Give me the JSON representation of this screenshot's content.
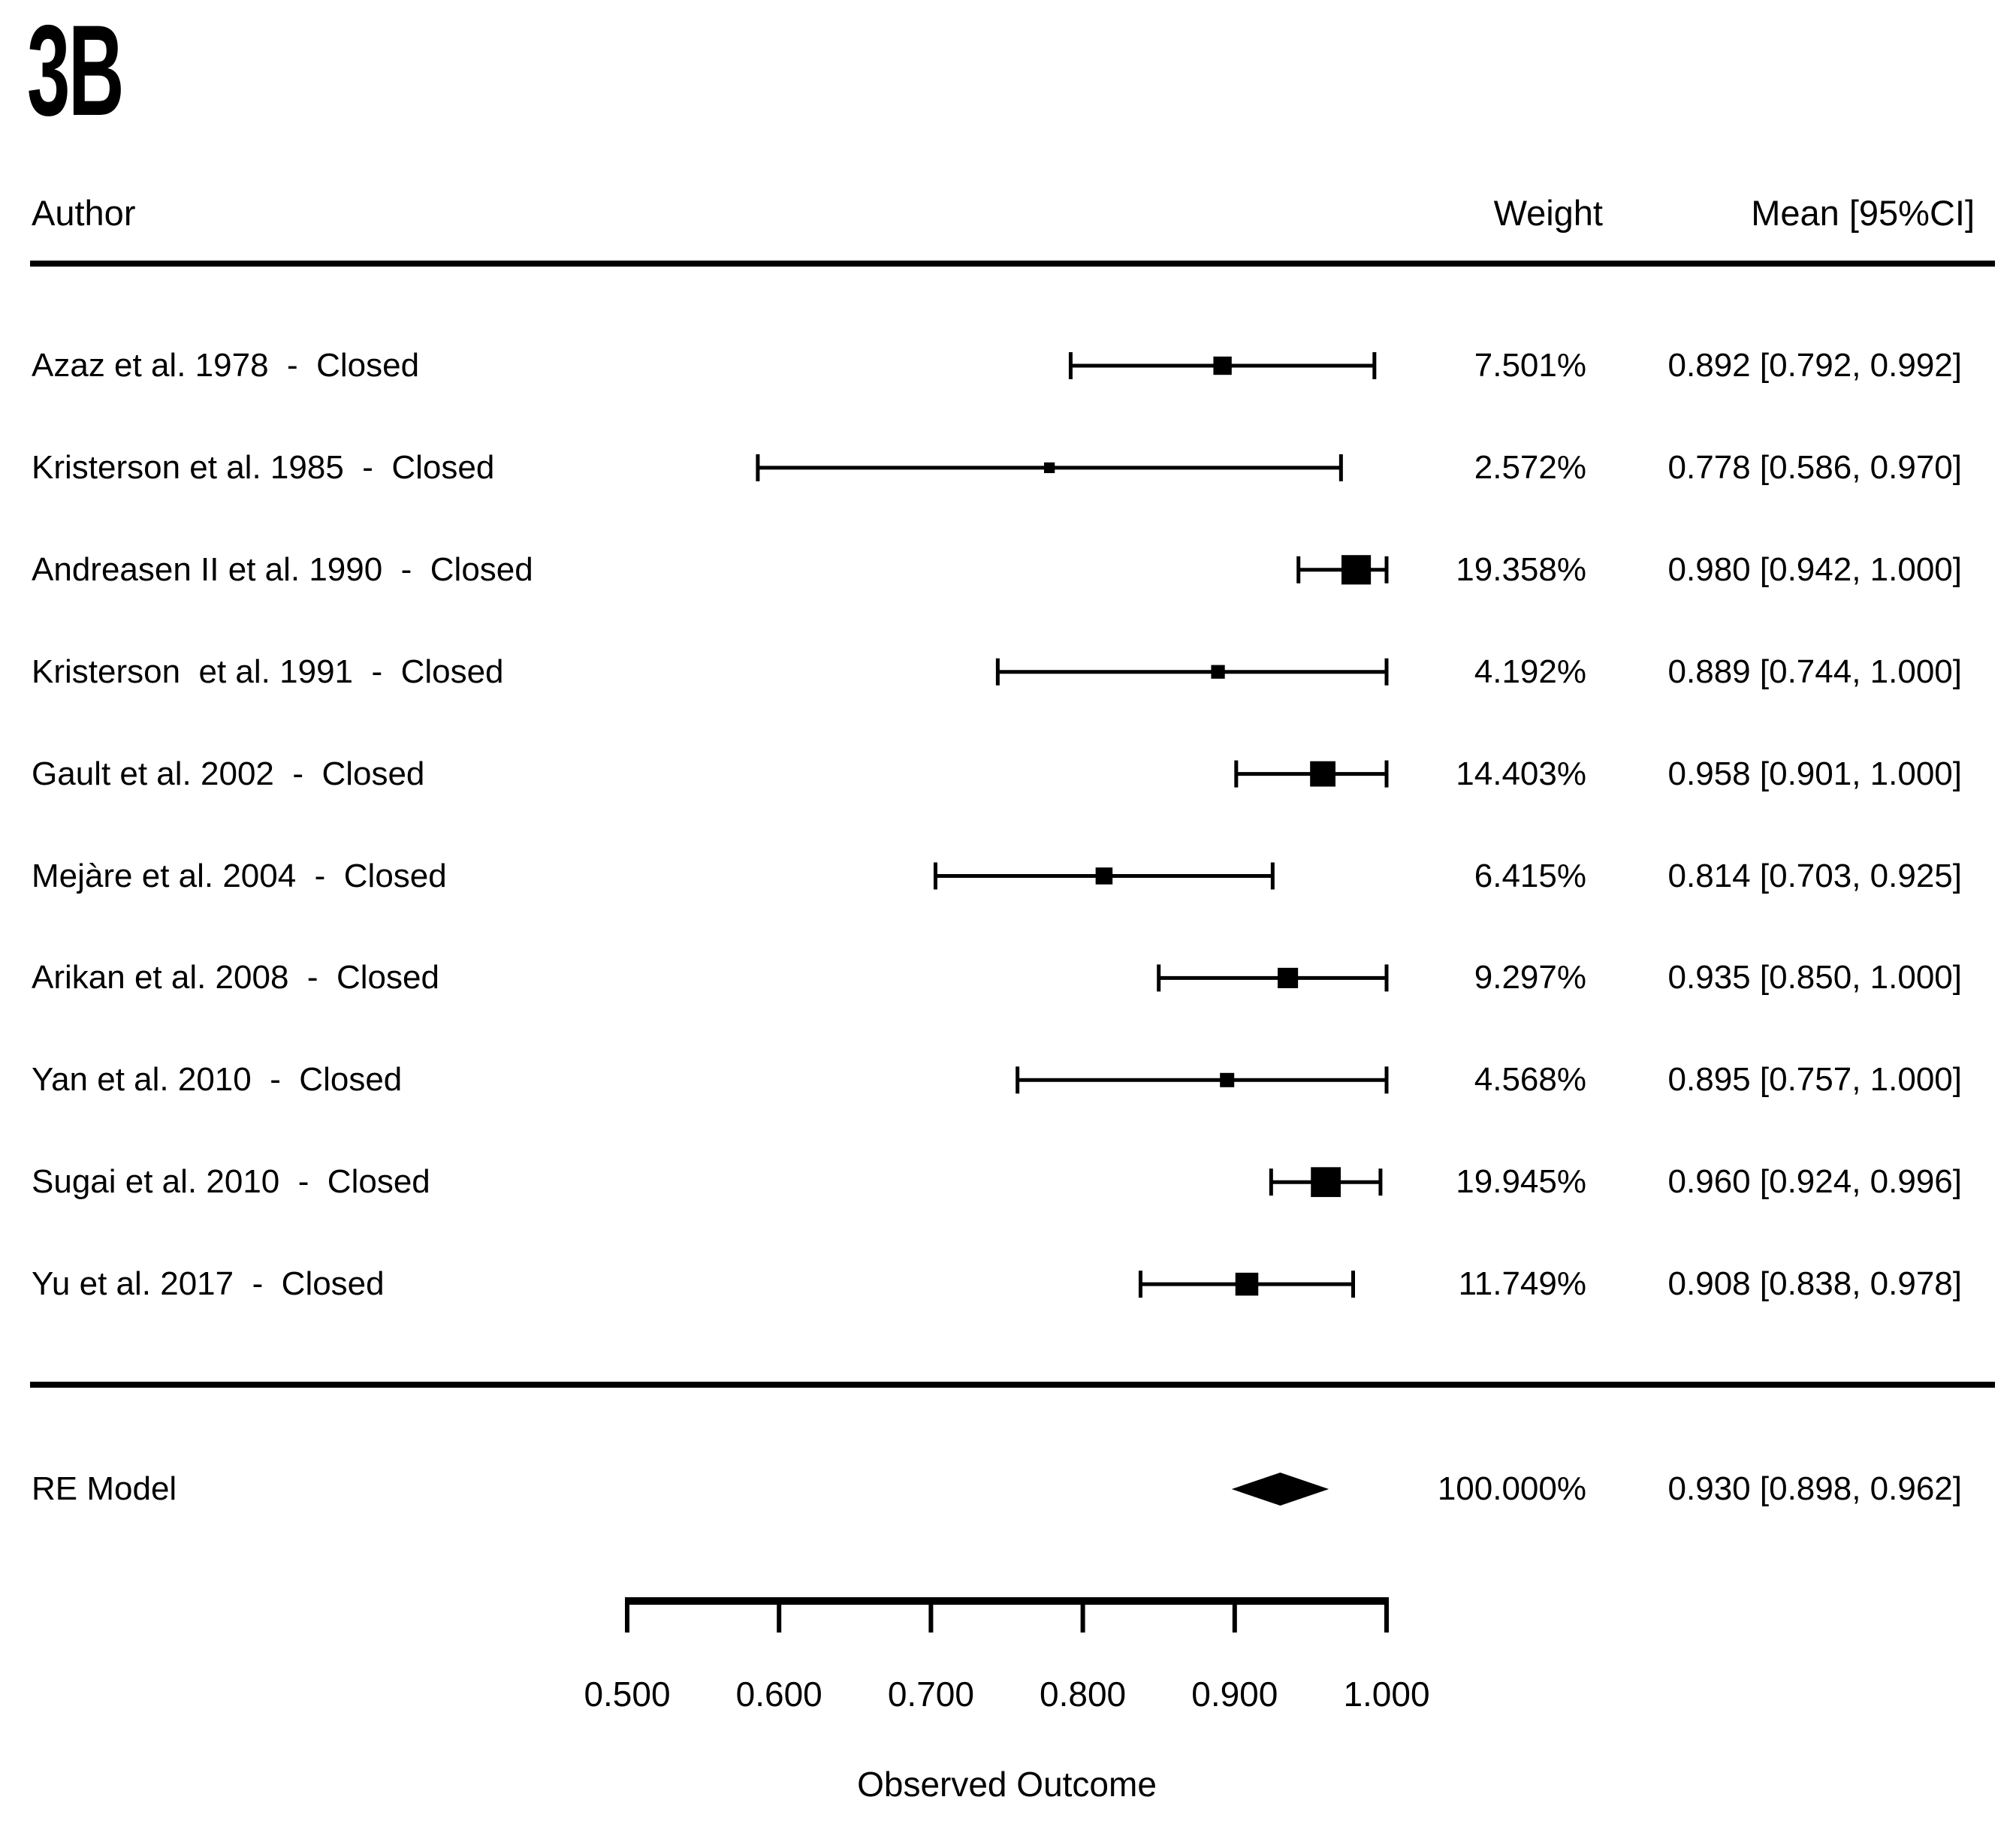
{
  "panel_label": "3B",
  "table": {
    "author_header": "Author",
    "weight_header": "Weight",
    "mean_header": "Mean [95%CI]"
  },
  "chart_data": {
    "type": "forest",
    "title": "3B",
    "xlabel": "Observed Outcome",
    "axis": {
      "min": 0.5,
      "max": 1.0,
      "ticks": [
        0.5,
        0.6,
        0.7,
        0.8,
        0.9,
        1.0
      ],
      "tick_labels": [
        "0.500",
        "0.600",
        "0.700",
        "0.800",
        "0.900",
        "1.000"
      ]
    },
    "rows": [
      {
        "author": "Azaz et al. 1978  -  Closed",
        "weight_pct": 7.501,
        "weight_label": "7.501%",
        "mean": 0.892,
        "ci_low": 0.792,
        "ci_high": 0.992,
        "mean_ci_label": "0.892 [0.792, 0.992]"
      },
      {
        "author": "Kristerson et al. 1985  -  Closed",
        "weight_pct": 2.572,
        "weight_label": "2.572%",
        "mean": 0.778,
        "ci_low": 0.586,
        "ci_high": 0.97,
        "mean_ci_label": "0.778 [0.586, 0.970]"
      },
      {
        "author": "Andreasen II et al. 1990  -  Closed",
        "weight_pct": 19.358,
        "weight_label": "19.358%",
        "mean": 0.98,
        "ci_low": 0.942,
        "ci_high": 1.0,
        "mean_ci_label": "0.980 [0.942, 1.000]"
      },
      {
        "author": "Kristerson  et al. 1991  -  Closed",
        "weight_pct": 4.192,
        "weight_label": "4.192%",
        "mean": 0.889,
        "ci_low": 0.744,
        "ci_high": 1.0,
        "mean_ci_label": "0.889 [0.744, 1.000]"
      },
      {
        "author": "Gault et al. 2002  -  Closed",
        "weight_pct": 14.403,
        "weight_label": "14.403%",
        "mean": 0.958,
        "ci_low": 0.901,
        "ci_high": 1.0,
        "mean_ci_label": "0.958 [0.901, 1.000]"
      },
      {
        "author": "Mejàre et al. 2004  -  Closed",
        "weight_pct": 6.415,
        "weight_label": "6.415%",
        "mean": 0.814,
        "ci_low": 0.703,
        "ci_high": 0.925,
        "mean_ci_label": "0.814 [0.703, 0.925]"
      },
      {
        "author": "Arikan et al. 2008  -  Closed",
        "weight_pct": 9.297,
        "weight_label": "9.297%",
        "mean": 0.935,
        "ci_low": 0.85,
        "ci_high": 1.0,
        "mean_ci_label": "0.935 [0.850, 1.000]"
      },
      {
        "author": "Yan et al. 2010  -  Closed",
        "weight_pct": 4.568,
        "weight_label": "4.568%",
        "mean": 0.895,
        "ci_low": 0.757,
        "ci_high": 1.0,
        "mean_ci_label": "0.895 [0.757, 1.000]"
      },
      {
        "author": "Sugai et al. 2010  -  Closed",
        "weight_pct": 19.945,
        "weight_label": "19.945%",
        "mean": 0.96,
        "ci_low": 0.924,
        "ci_high": 0.996,
        "mean_ci_label": "0.960 [0.924, 0.996]"
      },
      {
        "author": "Yu et al. 2017  -  Closed",
        "weight_pct": 11.749,
        "weight_label": "11.749%",
        "mean": 0.908,
        "ci_low": 0.838,
        "ci_high": 0.978,
        "mean_ci_label": "0.908 [0.838, 0.978]"
      }
    ],
    "summary": {
      "label": "RE Model",
      "weight_pct": 100.0,
      "weight_label": "100.000%",
      "mean": 0.93,
      "ci_low": 0.898,
      "ci_high": 0.962,
      "mean_ci_label": "0.930 [0.898, 0.962]"
    },
    "colors": {
      "foreground": "#000000",
      "background": "#ffffff"
    },
    "legend": null,
    "grid": false
  }
}
